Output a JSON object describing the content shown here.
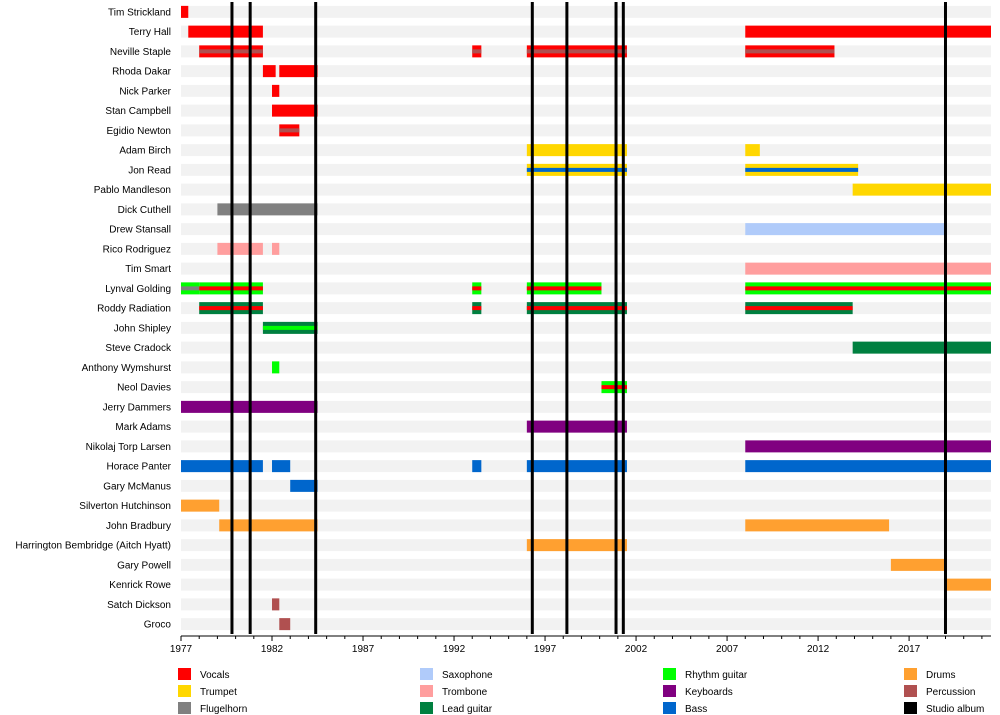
{
  "chart_data": {
    "type": "timeline",
    "title": "",
    "xlabel": "",
    "ylabel": "",
    "xlim": [
      1977,
      2021.5
    ],
    "xticks": [
      "1977",
      "1982",
      "1987",
      "1992",
      "1997",
      "2002",
      "2007",
      "2012",
      "2017"
    ],
    "grid": "horizontal row stripes",
    "legend_placement": "bottom",
    "roles": [
      {
        "key": "vocals",
        "label": "Vocals",
        "color": "#FF0000"
      },
      {
        "key": "trumpet",
        "label": "Trumpet",
        "color": "#FFD700"
      },
      {
        "key": "flugelhorn",
        "label": "Flugelhorn",
        "color": "#808080"
      },
      {
        "key": "saxophone",
        "label": "Saxophone",
        "color": "#B0CBFA"
      },
      {
        "key": "trombone",
        "label": "Trombone",
        "color": "#FF9E9E"
      },
      {
        "key": "lead_guitar",
        "label": "Lead guitar",
        "color": "#008040"
      },
      {
        "key": "rhythm_guitar",
        "label": "Rhythm guitar",
        "color": "#00FF00"
      },
      {
        "key": "keyboards",
        "label": "Keyboards",
        "color": "#800080"
      },
      {
        "key": "bass",
        "label": "Bass",
        "color": "#0066CC"
      },
      {
        "key": "drums",
        "label": "Drums",
        "color": "#FFA030"
      },
      {
        "key": "percussion",
        "label": "Percussion",
        "color": "#B05050"
      },
      {
        "key": "studio_album",
        "label": "Studio album",
        "color": "#000000"
      }
    ],
    "studio_albums": [
      1979.8,
      1980.8,
      1984.4,
      1996.3,
      1998.2,
      2000.9,
      2001.3,
      2019.0
    ],
    "members": [
      {
        "name": "Tim Strickland",
        "periods": [
          {
            "start": 1977.0,
            "end": 1977.4,
            "role": "vocals"
          }
        ]
      },
      {
        "name": "Terry Hall",
        "periods": [
          {
            "start": 1977.4,
            "end": 1981.5,
            "role": "vocals"
          },
          {
            "start": 2008.0,
            "end": 2021.5,
            "role": "vocals"
          }
        ]
      },
      {
        "name": "Neville Staple",
        "periods": [
          {
            "start": 1978.0,
            "end": 1981.5,
            "role": "vocals",
            "stripe": "percussion"
          },
          {
            "start": 1993.0,
            "end": 1993.5,
            "role": "vocals",
            "stripe": "percussion"
          },
          {
            "start": 1996.0,
            "end": 2001.5,
            "role": "vocals",
            "stripe": "percussion"
          },
          {
            "start": 2008.0,
            "end": 2012.9,
            "role": "vocals",
            "stripe": "percussion"
          }
        ]
      },
      {
        "name": "Rhoda Dakar",
        "periods": [
          {
            "start": 1981.5,
            "end": 1982.2,
            "role": "vocals"
          },
          {
            "start": 1982.4,
            "end": 1984.5,
            "role": "vocals"
          }
        ]
      },
      {
        "name": "Nick Parker",
        "periods": [
          {
            "start": 1982.0,
            "end": 1982.4,
            "role": "vocals"
          }
        ]
      },
      {
        "name": "Stan Campbell",
        "periods": [
          {
            "start": 1982.0,
            "end": 1984.5,
            "role": "vocals"
          }
        ]
      },
      {
        "name": "Egidio Newton",
        "periods": [
          {
            "start": 1982.4,
            "end": 1983.5,
            "role": "vocals",
            "stripe": "percussion"
          }
        ]
      },
      {
        "name": "Adam Birch",
        "periods": [
          {
            "start": 1996.0,
            "end": 2001.5,
            "role": "trumpet"
          },
          {
            "start": 2008.0,
            "end": 2008.8,
            "role": "trumpet"
          }
        ]
      },
      {
        "name": "Jon Read",
        "periods": [
          {
            "start": 1996.0,
            "end": 2001.5,
            "role": "trumpet",
            "stripe": "bass"
          },
          {
            "start": 2008.0,
            "end": 2014.2,
            "role": "trumpet",
            "stripe": "bass"
          }
        ]
      },
      {
        "name": "Pablo Mandleson",
        "periods": [
          {
            "start": 2013.9,
            "end": 2021.5,
            "role": "trumpet"
          }
        ]
      },
      {
        "name": "Dick Cuthell",
        "periods": [
          {
            "start": 1979.0,
            "end": 1984.5,
            "role": "flugelhorn"
          }
        ]
      },
      {
        "name": "Drew Stansall",
        "periods": [
          {
            "start": 2008.0,
            "end": 2019.0,
            "role": "saxophone"
          }
        ]
      },
      {
        "name": "Rico Rodriguez",
        "periods": [
          {
            "start": 1979.0,
            "end": 1981.5,
            "role": "trombone"
          },
          {
            "start": 1982.0,
            "end": 1982.4,
            "role": "trombone"
          }
        ]
      },
      {
        "name": "Tim Smart",
        "periods": [
          {
            "start": 2008.0,
            "end": 2021.5,
            "role": "trombone"
          }
        ]
      },
      {
        "name": "Lynval Golding",
        "periods": [
          {
            "start": 1977.0,
            "end": 1978.0,
            "role": "rhythm_guitar",
            "stripe": "flugelhorn"
          },
          {
            "start": 1978.0,
            "end": 1981.5,
            "role": "rhythm_guitar",
            "stripe": "vocals"
          },
          {
            "start": 1993.0,
            "end": 1993.5,
            "role": "rhythm_guitar",
            "stripe": "vocals"
          },
          {
            "start": 1996.0,
            "end": 2000.1,
            "role": "rhythm_guitar",
            "stripe": "vocals"
          },
          {
            "start": 2008.0,
            "end": 2021.5,
            "role": "rhythm_guitar",
            "stripe": "vocals"
          }
        ]
      },
      {
        "name": "Roddy Radiation",
        "periods": [
          {
            "start": 1978.0,
            "end": 1981.5,
            "role": "lead_guitar",
            "stripe": "vocals"
          },
          {
            "start": 1993.0,
            "end": 1993.5,
            "role": "lead_guitar",
            "stripe": "vocals"
          },
          {
            "start": 1996.0,
            "end": 2001.5,
            "role": "lead_guitar",
            "stripe": "vocals"
          },
          {
            "start": 2008.0,
            "end": 2013.9,
            "role": "lead_guitar",
            "stripe": "vocals"
          }
        ]
      },
      {
        "name": "John Shipley",
        "periods": [
          {
            "start": 1981.5,
            "end": 1984.5,
            "role": "lead_guitar",
            "stripe": "rhythm_guitar"
          }
        ]
      },
      {
        "name": "Steve Cradock",
        "periods": [
          {
            "start": 2013.9,
            "end": 2021.5,
            "role": "lead_guitar"
          }
        ]
      },
      {
        "name": "Anthony Wymshurst",
        "periods": [
          {
            "start": 1982.0,
            "end": 1982.4,
            "role": "rhythm_guitar"
          }
        ]
      },
      {
        "name": "Neol Davies",
        "periods": [
          {
            "start": 2000.1,
            "end": 2001.5,
            "role": "rhythm_guitar",
            "stripe": "vocals"
          }
        ]
      },
      {
        "name": "Jerry Dammers",
        "periods": [
          {
            "start": 1977.0,
            "end": 1984.5,
            "role": "keyboards"
          }
        ]
      },
      {
        "name": "Mark Adams",
        "periods": [
          {
            "start": 1996.0,
            "end": 2001.5,
            "role": "keyboards"
          }
        ]
      },
      {
        "name": "Nikolaj Torp Larsen",
        "periods": [
          {
            "start": 2008.0,
            "end": 2021.5,
            "role": "keyboards"
          }
        ]
      },
      {
        "name": "Horace Panter",
        "periods": [
          {
            "start": 1977.0,
            "end": 1981.5,
            "role": "bass"
          },
          {
            "start": 1982.0,
            "end": 1983.0,
            "role": "bass"
          },
          {
            "start": 1993.0,
            "end": 1993.5,
            "role": "bass"
          },
          {
            "start": 1996.0,
            "end": 2001.5,
            "role": "bass"
          },
          {
            "start": 2008.0,
            "end": 2021.5,
            "role": "bass"
          }
        ]
      },
      {
        "name": "Gary McManus",
        "periods": [
          {
            "start": 1983.0,
            "end": 1984.5,
            "role": "bass"
          }
        ]
      },
      {
        "name": "Silverton Hutchinson",
        "periods": [
          {
            "start": 1977.0,
            "end": 1979.1,
            "role": "drums"
          }
        ]
      },
      {
        "name": "John Bradbury",
        "periods": [
          {
            "start": 1979.1,
            "end": 1984.5,
            "role": "drums"
          },
          {
            "start": 2008.0,
            "end": 2015.9,
            "role": "drums"
          }
        ]
      },
      {
        "name": "Harrington Bembridge (Aitch Hyatt)",
        "periods": [
          {
            "start": 1996.0,
            "end": 2001.5,
            "role": "drums"
          }
        ]
      },
      {
        "name": "Gary Powell",
        "periods": [
          {
            "start": 2016.0,
            "end": 2019.0,
            "role": "drums"
          }
        ]
      },
      {
        "name": "Kenrick Rowe",
        "periods": [
          {
            "start": 2019.0,
            "end": 2021.5,
            "role": "drums"
          }
        ]
      },
      {
        "name": "Satch Dickson",
        "periods": [
          {
            "start": 1982.0,
            "end": 1982.4,
            "role": "percussion"
          }
        ]
      },
      {
        "name": "Groco",
        "periods": [
          {
            "start": 1982.4,
            "end": 1983.0,
            "role": "percussion"
          }
        ]
      }
    ]
  }
}
